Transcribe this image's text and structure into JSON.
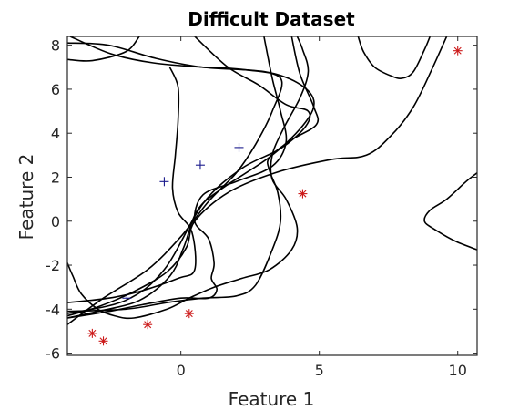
{
  "chart_data": {
    "type": "scatter",
    "title": "Difficult Dataset",
    "xlabel": "Feature 1",
    "ylabel": "Feature 2",
    "xlim": [
      -4.1,
      10.7
    ],
    "ylim": [
      -6.1,
      8.4
    ],
    "xticks": [
      0,
      5,
      10
    ],
    "yticks": [
      -6,
      -4,
      -2,
      0,
      2,
      4,
      6,
      8
    ],
    "grid": false,
    "legend": "none",
    "series": [
      {
        "marker": "+",
        "color": "#1a1a8c",
        "points": [
          [
            -0.6,
            1.8
          ],
          [
            0.7,
            2.55
          ],
          [
            2.1,
            3.35
          ],
          [
            -1.95,
            -3.5
          ]
        ]
      },
      {
        "marker": "*",
        "color": "#cc1a1a",
        "points": [
          [
            10.0,
            7.75
          ],
          [
            4.4,
            1.25
          ],
          [
            0.3,
            -4.2
          ],
          [
            -1.2,
            -4.7
          ],
          [
            -3.2,
            -5.1
          ],
          [
            -2.8,
            -5.45
          ]
        ]
      }
    ],
    "boundaries": [
      [
        [
          -4.1,
          7.35
        ],
        [
          -3.2,
          7.3
        ],
        [
          -2.0,
          7.7
        ],
        [
          -1.5,
          8.4
        ]
      ],
      [
        [
          -4.0,
          8.4
        ],
        [
          -2.5,
          7.6
        ],
        [
          -1.0,
          7.2
        ],
        [
          0.8,
          7.0
        ],
        [
          2.2,
          6.9
        ],
        [
          3.6,
          6.5
        ],
        [
          3.3,
          5.0
        ],
        [
          2.7,
          3.5
        ],
        [
          2.0,
          2.2
        ],
        [
          1.0,
          0.9
        ],
        [
          0.0,
          -0.7
        ],
        [
          -1.2,
          -2.2
        ],
        [
          -2.8,
          -3.5
        ],
        [
          -4.1,
          -4.7
        ]
      ],
      [
        [
          0.5,
          8.4
        ],
        [
          1.7,
          7.0
        ],
        [
          2.8,
          6.2
        ],
        [
          3.8,
          5.3
        ],
        [
          4.6,
          5.0
        ],
        [
          4.5,
          4.3
        ],
        [
          3.6,
          3.3
        ],
        [
          2.2,
          2.4
        ],
        [
          0.8,
          0.8
        ],
        [
          -0.6,
          -2.2
        ],
        [
          -2.0,
          -3.6
        ],
        [
          -4.1,
          -4.2
        ]
      ],
      [
        [
          -4.1,
          8.1
        ],
        [
          -2.6,
          8.0
        ],
        [
          -0.9,
          7.4
        ],
        [
          0.8,
          7.0
        ],
        [
          3.0,
          6.8
        ],
        [
          4.2,
          6.3
        ],
        [
          4.8,
          5.5
        ],
        [
          4.5,
          4.5
        ],
        [
          3.3,
          3.0
        ],
        [
          1.5,
          1.5
        ],
        [
          0.6,
          0.5
        ],
        [
          0.1,
          -1.2
        ],
        [
          -0.4,
          -2.5
        ],
        [
          -1.5,
          -3.6
        ],
        [
          -3.0,
          -4.1
        ],
        [
          -4.1,
          -4.4
        ]
      ],
      [
        [
          3.0,
          8.4
        ],
        [
          3.3,
          6.5
        ],
        [
          3.6,
          5.0
        ],
        [
          3.8,
          3.6
        ],
        [
          3.3,
          2.5
        ],
        [
          2.0,
          1.8
        ],
        [
          0.8,
          1.2
        ],
        [
          0.5,
          0.0
        ],
        [
          1.0,
          -0.8
        ],
        [
          1.2,
          -1.9
        ],
        [
          1.1,
          -2.6
        ],
        [
          1.3,
          -3.1
        ],
        [
          1.0,
          -3.5
        ],
        [
          0.0,
          -3.5
        ],
        [
          -1.4,
          -3.8
        ],
        [
          -2.6,
          -4.1
        ],
        [
          -4.1,
          -4.4
        ]
      ],
      [
        [
          4.0,
          8.4
        ],
        [
          4.3,
          6.7
        ],
        [
          4.8,
          5.2
        ],
        [
          4.9,
          4.4
        ],
        [
          4.0,
          3.7
        ],
        [
          3.2,
          2.9
        ],
        [
          3.2,
          2.3
        ],
        [
          3.5,
          1.3
        ],
        [
          3.6,
          0.0
        ],
        [
          3.3,
          -1.3
        ],
        [
          2.7,
          -2.9
        ],
        [
          2.0,
          -3.4
        ],
        [
          0.8,
          -3.5
        ],
        [
          -0.5,
          -3.7
        ],
        [
          -2.0,
          -4.0
        ],
        [
          -4.1,
          -4.1
        ]
      ],
      [
        [
          -0.4,
          7.0
        ],
        [
          -0.1,
          6.1
        ],
        [
          -0.1,
          4.6
        ],
        [
          -0.2,
          3.0
        ],
        [
          -0.3,
          1.5
        ],
        [
          -0.1,
          0.4
        ],
        [
          0.4,
          -0.5
        ],
        [
          0.5,
          -2.2
        ],
        [
          -0.1,
          -2.6
        ],
        [
          -1.5,
          -3.2
        ],
        [
          -2.6,
          -3.5
        ],
        [
          -4.1,
          -3.7
        ]
      ],
      [
        [
          -4.1,
          -1.9
        ],
        [
          -3.9,
          -2.5
        ],
        [
          -3.6,
          -3.3
        ],
        [
          -3.0,
          -4.0
        ],
        [
          -2.4,
          -4.3
        ],
        [
          -1.7,
          -4.4
        ],
        [
          -0.5,
          -4.0
        ],
        [
          0.3,
          -3.5
        ],
        [
          1.2,
          -3.0
        ],
        [
          2.2,
          -2.6
        ],
        [
          3.2,
          -2.2
        ],
        [
          4.0,
          -1.3
        ],
        [
          4.2,
          -0.3
        ],
        [
          3.8,
          1.0
        ],
        [
          3.3,
          1.9
        ],
        [
          3.3,
          3.0
        ],
        [
          3.7,
          4.2
        ],
        [
          4.3,
          5.6
        ],
        [
          4.6,
          6.8
        ],
        [
          4.4,
          7.8
        ],
        [
          4.2,
          8.4
        ]
      ],
      [
        [
          6.4,
          8.4
        ],
        [
          6.6,
          7.7
        ],
        [
          7.0,
          7.0
        ],
        [
          7.6,
          6.6
        ],
        [
          8.0,
          6.5
        ],
        [
          8.4,
          6.8
        ],
        [
          8.8,
          7.8
        ],
        [
          9.0,
          8.4
        ]
      ],
      [
        [
          9.6,
          8.4
        ],
        [
          9.1,
          7.0
        ],
        [
          8.4,
          5.2
        ],
        [
          7.6,
          3.9
        ],
        [
          6.7,
          3.0
        ],
        [
          5.4,
          2.8
        ],
        [
          3.4,
          2.2
        ],
        [
          1.7,
          1.3
        ],
        [
          0.5,
          0.0
        ],
        [
          0.2,
          -1.2
        ],
        [
          -0.5,
          -2.3
        ],
        [
          -1.7,
          -3.2
        ],
        [
          -3.0,
          -3.9
        ],
        [
          -4.1,
          -4.3
        ]
      ],
      [
        [
          10.7,
          2.2
        ],
        [
          10.3,
          1.8
        ],
        [
          9.6,
          1.0
        ],
        [
          9.0,
          0.5
        ],
        [
          8.8,
          0.0
        ],
        [
          9.2,
          -0.4
        ],
        [
          9.9,
          -0.9
        ],
        [
          10.7,
          -1.3
        ]
      ]
    ]
  }
}
